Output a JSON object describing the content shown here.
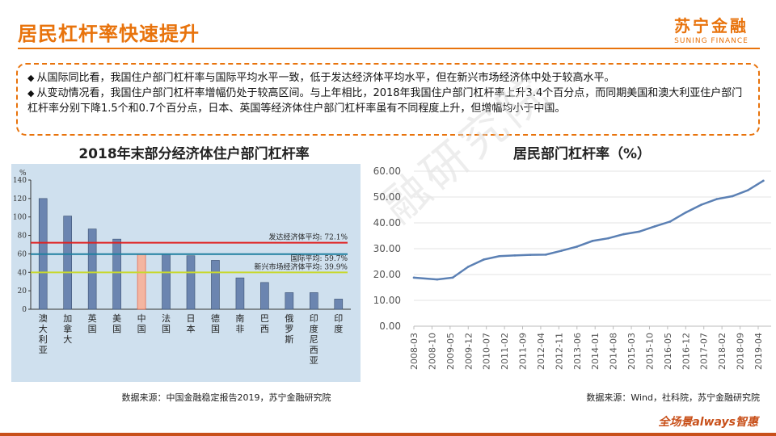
{
  "header": {
    "title": "居民杠杆率快速提升",
    "logo_cn": "苏宁金融",
    "logo_en": "SUNING FINANCE"
  },
  "bullets": [
    "从国际同比看，我国住户部门杠杆率与国际平均水平一致，低于发达经济体平均水平，但在新兴市场经济体中处于较高水平。",
    "从变动情况看，我国住户部门杠杆率增幅仍处于较高区间。与上年相比，2018年我国住户部门杠杆率上升3.4个百分点，而同期美国和澳大利亚住户部门杠杆率分别下降1.5个和0.7个百分点，日本、英国等经济体住户部门杠杆率虽有不同程度上升，但增幅均小于中国。"
  ],
  "left": {
    "heading": "2018年末部分经济体住户部门杠杆率",
    "source": "数据来源：中国金融稳定报告2019，苏宁金融研究院"
  },
  "right": {
    "heading": "居民部门杠杆率（%）",
    "source": "数据来源：Wind，社科院，苏宁金融研究院"
  },
  "watermark": "融研究院",
  "footer": {
    "slogan": "全场景always智惠"
  },
  "colors": {
    "accent": "#e8730c",
    "bar_fill": "#6b85b0",
    "china_bar": "#f4b5a0",
    "line": "#5b80b4",
    "chart_bg": "#cfe0ee"
  },
  "chart_data": [
    {
      "type": "bar",
      "ylabel": "%",
      "ylim": [
        0,
        140
      ],
      "yticks": [
        0,
        20,
        40,
        60,
        80,
        100,
        120,
        140
      ],
      "categories": [
        "澳大利亚",
        "加拿大",
        "英国",
        "美国",
        "中国",
        "法国",
        "日本",
        "德国",
        "南非",
        "巴西",
        "俄罗斯",
        "印度尼西亚",
        "印度"
      ],
      "values": [
        120,
        101,
        87,
        76,
        60,
        60,
        58,
        53,
        34,
        29,
        18,
        18,
        11
      ],
      "highlight": "中国",
      "reference_lines": [
        {
          "label": "发达经济体平均: 72.1%",
          "value": 72.1,
          "color": "#e02020"
        },
        {
          "label": "国际平均: 59.7%",
          "value": 59.7,
          "color": "#2080a0"
        },
        {
          "label": "新兴市场经济体平均: 39.9%",
          "value": 39.9,
          "color": "#c8d830"
        }
      ]
    },
    {
      "type": "line",
      "ylim": [
        0,
        60
      ],
      "yticks": [
        "0.00",
        "10.00",
        "20.00",
        "30.00",
        "40.00",
        "50.00",
        "60.00"
      ],
      "xticks": [
        "2008-03",
        "2008-10",
        "2009-05",
        "2009-12",
        "2010-07",
        "2011-02",
        "2011-09",
        "2012-04",
        "2012-11",
        "2013-06",
        "2014-01",
        "2014-08",
        "2015-03",
        "2015-10",
        "2016-05",
        "2016-12",
        "2017-07",
        "2018-02",
        "2018-09",
        "2019-04"
      ],
      "series": [
        {
          "x": [
            "2008-03",
            "2008-12",
            "2009-06",
            "2009-12",
            "2010-06",
            "2010-12",
            "2011-06",
            "2011-12",
            "2012-06",
            "2012-12",
            "2013-06",
            "2013-12",
            "2014-06",
            "2014-12",
            "2015-06",
            "2015-12",
            "2016-06",
            "2016-12",
            "2017-06",
            "2017-12",
            "2018-06",
            "2018-12",
            "2019-06"
          ],
          "values": [
            18.8,
            18.1,
            18.8,
            23.0,
            25.8,
            27.1,
            27.4,
            27.6,
            27.7,
            29.2,
            30.8,
            33.0,
            34.0,
            35.6,
            36.6,
            38.6,
            40.5,
            44.0,
            47.0,
            49.2,
            50.3,
            52.6,
            56.3
          ]
        }
      ]
    }
  ]
}
